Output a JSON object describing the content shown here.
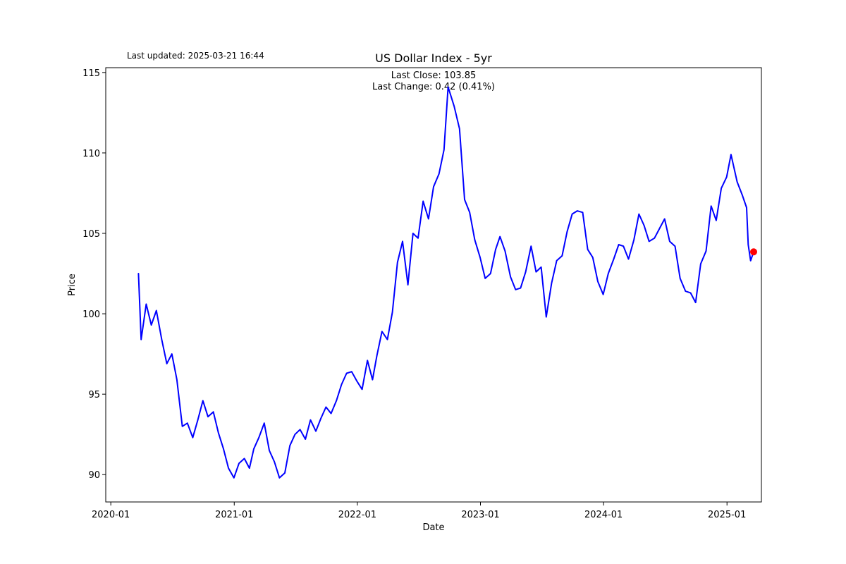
{
  "updated_text": "Last updated: 2025-03-21 16:44",
  "chart_data": {
    "type": "line",
    "title": "US Dollar Index - 5yr",
    "xlabel": "Date",
    "ylabel": "Price",
    "xlim": [
      "2019-12-17",
      "2025-04-13"
    ],
    "ylim": [
      88.3,
      115.3
    ],
    "x_ticks": [
      "2020-01",
      "2021-01",
      "2022-01",
      "2023-01",
      "2024-01",
      "2025-01"
    ],
    "y_ticks": [
      90,
      95,
      100,
      105,
      110,
      115
    ],
    "grid": false,
    "line_color": "#0000ff",
    "marker_color": "#ff0000",
    "annotations": [
      "Last Close: 103.85",
      "Last Change: 0.42 (0.41%)"
    ],
    "series": [
      {
        "dates": [
          "2020-03-23",
          "2020-03-31",
          "2020-04-15",
          "2020-04-30",
          "2020-05-15",
          "2020-05-31",
          "2020-06-15",
          "2020-06-30",
          "2020-07-15",
          "2020-07-31",
          "2020-08-15",
          "2020-08-31",
          "2020-09-15",
          "2020-09-30",
          "2020-10-15",
          "2020-10-31",
          "2020-11-15",
          "2020-11-30",
          "2020-12-15",
          "2020-12-31",
          "2021-01-15",
          "2021-01-31",
          "2021-02-15",
          "2021-02-28",
          "2021-03-15",
          "2021-03-31",
          "2021-04-15",
          "2021-04-30",
          "2021-05-15",
          "2021-05-31",
          "2021-06-15",
          "2021-06-30",
          "2021-07-15",
          "2021-07-31",
          "2021-08-15",
          "2021-08-31",
          "2021-09-15",
          "2021-09-30",
          "2021-10-15",
          "2021-10-31",
          "2021-11-15",
          "2021-11-30",
          "2021-12-15",
          "2021-12-31",
          "2022-01-15",
          "2022-01-31",
          "2022-02-15",
          "2022-02-28",
          "2022-03-15",
          "2022-03-31",
          "2022-04-15",
          "2022-04-30",
          "2022-05-15",
          "2022-05-31",
          "2022-06-15",
          "2022-06-30",
          "2022-07-15",
          "2022-07-31",
          "2022-08-15",
          "2022-08-31",
          "2022-09-15",
          "2022-09-27",
          "2022-10-15",
          "2022-10-31",
          "2022-11-15",
          "2022-11-30",
          "2022-12-15",
          "2022-12-31",
          "2023-01-15",
          "2023-01-31",
          "2023-02-15",
          "2023-02-28",
          "2023-03-15",
          "2023-03-31",
          "2023-04-15",
          "2023-04-30",
          "2023-05-15",
          "2023-05-31",
          "2023-06-15",
          "2023-06-30",
          "2023-07-15",
          "2023-07-31",
          "2023-08-15",
          "2023-08-31",
          "2023-09-15",
          "2023-09-30",
          "2023-10-15",
          "2023-10-31",
          "2023-11-15",
          "2023-11-30",
          "2023-12-15",
          "2023-12-31",
          "2024-01-15",
          "2024-01-31",
          "2024-02-15",
          "2024-02-29",
          "2024-03-15",
          "2024-03-31",
          "2024-04-15",
          "2024-04-30",
          "2024-05-15",
          "2024-05-31",
          "2024-06-15",
          "2024-06-30",
          "2024-07-15",
          "2024-07-31",
          "2024-08-15",
          "2024-08-31",
          "2024-09-15",
          "2024-09-30",
          "2024-10-15",
          "2024-10-31",
          "2024-11-15",
          "2024-11-30",
          "2024-12-15",
          "2024-12-31",
          "2025-01-13",
          "2025-01-31",
          "2025-02-15",
          "2025-02-28",
          "2025-03-05",
          "2025-03-12",
          "2025-03-21"
        ],
        "values": [
          102.5,
          98.4,
          100.6,
          99.3,
          100.2,
          98.4,
          96.9,
          97.5,
          95.9,
          93.0,
          93.2,
          92.3,
          93.4,
          94.6,
          93.6,
          93.9,
          92.6,
          91.6,
          90.4,
          89.8,
          90.7,
          91.0,
          90.4,
          91.6,
          92.3,
          93.2,
          91.5,
          90.8,
          89.8,
          90.1,
          91.8,
          92.5,
          92.8,
          92.2,
          93.4,
          92.7,
          93.5,
          94.2,
          93.8,
          94.6,
          95.6,
          96.3,
          96.4,
          95.8,
          95.3,
          97.1,
          95.9,
          97.4,
          98.9,
          98.4,
          100.1,
          103.2,
          104.5,
          101.8,
          105.0,
          104.7,
          107.0,
          105.9,
          107.9,
          108.7,
          110.2,
          114.1,
          112.9,
          111.5,
          107.1,
          106.3,
          104.6,
          103.5,
          102.2,
          102.5,
          104.0,
          104.8,
          103.9,
          102.3,
          101.5,
          101.6,
          102.6,
          104.2,
          102.6,
          102.9,
          99.8,
          101.9,
          103.3,
          103.6,
          105.1,
          106.2,
          106.4,
          106.3,
          104.0,
          103.5,
          102.0,
          101.2,
          102.5,
          103.4,
          104.3,
          104.2,
          103.4,
          104.6,
          106.2,
          105.5,
          104.5,
          104.7,
          105.3,
          105.9,
          104.5,
          104.2,
          102.2,
          101.4,
          101.3,
          100.7,
          103.1,
          103.9,
          106.7,
          105.8,
          107.8,
          108.5,
          109.9,
          108.2,
          107.4,
          106.6,
          104.3,
          103.3,
          103.85
        ]
      }
    ],
    "last_point": {
      "date": "2025-03-21",
      "value": 103.85
    }
  }
}
